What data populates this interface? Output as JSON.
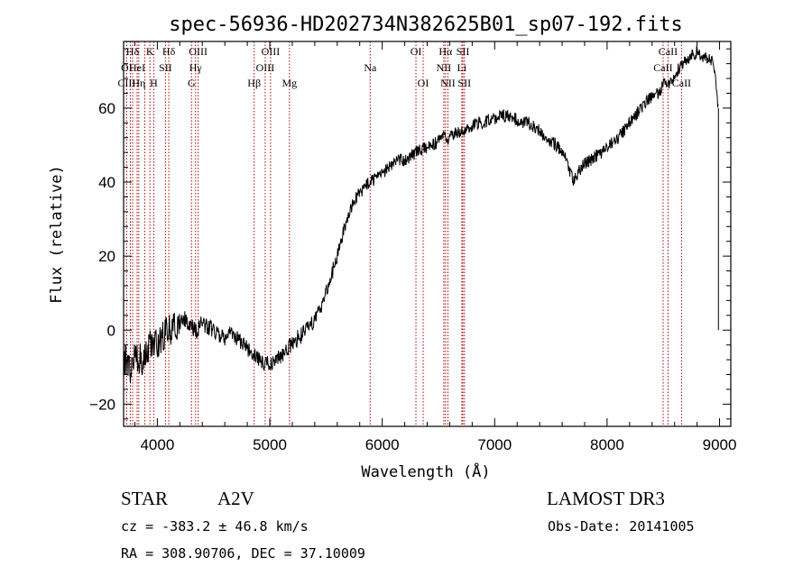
{
  "chart_data": {
    "type": "line",
    "title": "spec-56936-HD202734N382625B01_sp07-192.fits",
    "xlabel": "Wavelength (Å)",
    "ylabel": "Flux (relative)",
    "xlim": [
      3700,
      9100
    ],
    "ylim": [
      -26,
      78
    ],
    "xticks": [
      4000,
      5000,
      6000,
      7000,
      8000,
      9000
    ],
    "yticks": [
      -20,
      0,
      20,
      40,
      60
    ],
    "series": [
      {
        "name": "flux",
        "x": [
          3700,
          3760,
          3800,
          3860,
          3900,
          3950,
          4000,
          4050,
          4100,
          4150,
          4200,
          4250,
          4300,
          4350,
          4400,
          4450,
          4500,
          4550,
          4600,
          4650,
          4700,
          4750,
          4800,
          4850,
          4900,
          4950,
          5000,
          5050,
          5100,
          5150,
          5200,
          5250,
          5300,
          5350,
          5400,
          5450,
          5500,
          5550,
          5600,
          5650,
          5700,
          5750,
          5800,
          5850,
          5900,
          5950,
          6000,
          6050,
          6100,
          6150,
          6200,
          6250,
          6300,
          6350,
          6400,
          6450,
          6500,
          6550,
          6600,
          6650,
          6700,
          6750,
          6800,
          6850,
          6900,
          6950,
          7000,
          7050,
          7100,
          7150,
          7200,
          7250,
          7300,
          7350,
          7400,
          7450,
          7500,
          7550,
          7600,
          7650,
          7700,
          7750,
          7800,
          7850,
          7900,
          7950,
          8000,
          8050,
          8100,
          8150,
          8200,
          8250,
          8300,
          8350,
          8400,
          8450,
          8500,
          8550,
          8600,
          8650,
          8700,
          8750,
          8800,
          8850,
          8900,
          8950,
          8990
        ],
        "values": [
          -8,
          -10,
          -6,
          -8,
          -5,
          -3,
          -4,
          -2,
          0,
          1,
          2,
          3,
          1,
          0,
          2,
          1,
          0,
          -1,
          -2,
          -1,
          -2,
          -3,
          -5,
          -6,
          -8,
          -9,
          -9,
          -8,
          -7,
          -5,
          -4,
          -2,
          -1,
          1,
          3,
          6,
          10,
          15,
          20,
          26,
          31,
          35,
          37,
          39,
          40,
          41,
          42,
          44,
          45,
          46,
          46,
          47,
          48,
          49,
          49,
          50,
          51,
          52,
          52,
          53,
          54,
          54,
          55,
          56,
          56,
          57,
          57,
          58,
          58,
          57,
          57,
          56,
          56,
          55,
          54,
          52,
          51,
          50,
          48,
          45,
          40,
          43,
          45,
          46,
          47,
          48,
          49,
          51,
          52,
          54,
          56,
          58,
          60,
          62,
          63,
          64,
          66,
          67,
          69,
          71,
          73,
          74,
          75,
          74,
          73,
          72,
          60
        ]
      }
    ],
    "spectral_lines": [
      {
        "label": "Hδ",
        "wavelength": 3780,
        "row": 1
      },
      {
        "label": "K",
        "wavelength": 3934,
        "row": 1
      },
      {
        "label": "Hδ",
        "wavelength": 4102,
        "row": 1
      },
      {
        "label": "OIII",
        "wavelength": 4363,
        "row": 1
      },
      {
        "label": "OIII",
        "wavelength": 5007,
        "row": 1
      },
      {
        "label": "OI",
        "wavelength": 6300,
        "row": 1
      },
      {
        "label": "Hα",
        "wavelength": 6563,
        "row": 1
      },
      {
        "label": "SII",
        "wavelength": 6717,
        "row": 1
      },
      {
        "label": "CaII",
        "wavelength": 8542,
        "row": 1
      },
      {
        "label": "OI",
        "wavelength": 3727,
        "row": 2
      },
      {
        "label": "HeI",
        "wavelength": 3820,
        "row": 2
      },
      {
        "label": "SII",
        "wavelength": 4072,
        "row": 2
      },
      {
        "label": "Hγ",
        "wavelength": 4340,
        "row": 2
      },
      {
        "label": "OIII",
        "wavelength": 4959,
        "row": 2
      },
      {
        "label": "Na",
        "wavelength": 5893,
        "row": 2
      },
      {
        "label": "NII",
        "wavelength": 6548,
        "row": 2
      },
      {
        "label": "Li",
        "wavelength": 6708,
        "row": 2
      },
      {
        "label": "CaII",
        "wavelength": 8498,
        "row": 2
      },
      {
        "label": "CIII",
        "wavelength": 3727,
        "row": 3
      },
      {
        "label": "Hη",
        "wavelength": 3835,
        "row": 3
      },
      {
        "label": "H",
        "wavelength": 3968,
        "row": 3
      },
      {
        "label": "G",
        "wavelength": 4304,
        "row": 3
      },
      {
        "label": "Hβ",
        "wavelength": 4861,
        "row": 3
      },
      {
        "label": "Mg",
        "wavelength": 5175,
        "row": 3
      },
      {
        "label": "OI",
        "wavelength": 6364,
        "row": 3
      },
      {
        "label": "NII",
        "wavelength": 6584,
        "row": 3
      },
      {
        "label": "SII",
        "wavelength": 6731,
        "row": 3
      },
      {
        "label": "CaII",
        "wavelength": 8662,
        "row": 3
      }
    ],
    "line_markers": [
      3727,
      3760,
      3780,
      3820,
      3835,
      3889,
      3934,
      3968,
      4072,
      4102,
      4304,
      4340,
      4363,
      4861,
      4959,
      5007,
      5175,
      5893,
      6300,
      6364,
      6548,
      6563,
      6584,
      6708,
      6717,
      6731,
      8498,
      8542,
      8662
    ]
  },
  "info": {
    "object_type": "STAR",
    "subclass": "A2V",
    "survey": "LAMOST DR3",
    "redshift": "cz = -383.2 ± 46.8 km/s",
    "obs_date": "Obs-Date: 20141005",
    "coords": "RA = 308.90706, DEC =  37.10009"
  },
  "colors": {
    "curve": "#000000",
    "marker": "#b30000",
    "axis": "#000000"
  }
}
